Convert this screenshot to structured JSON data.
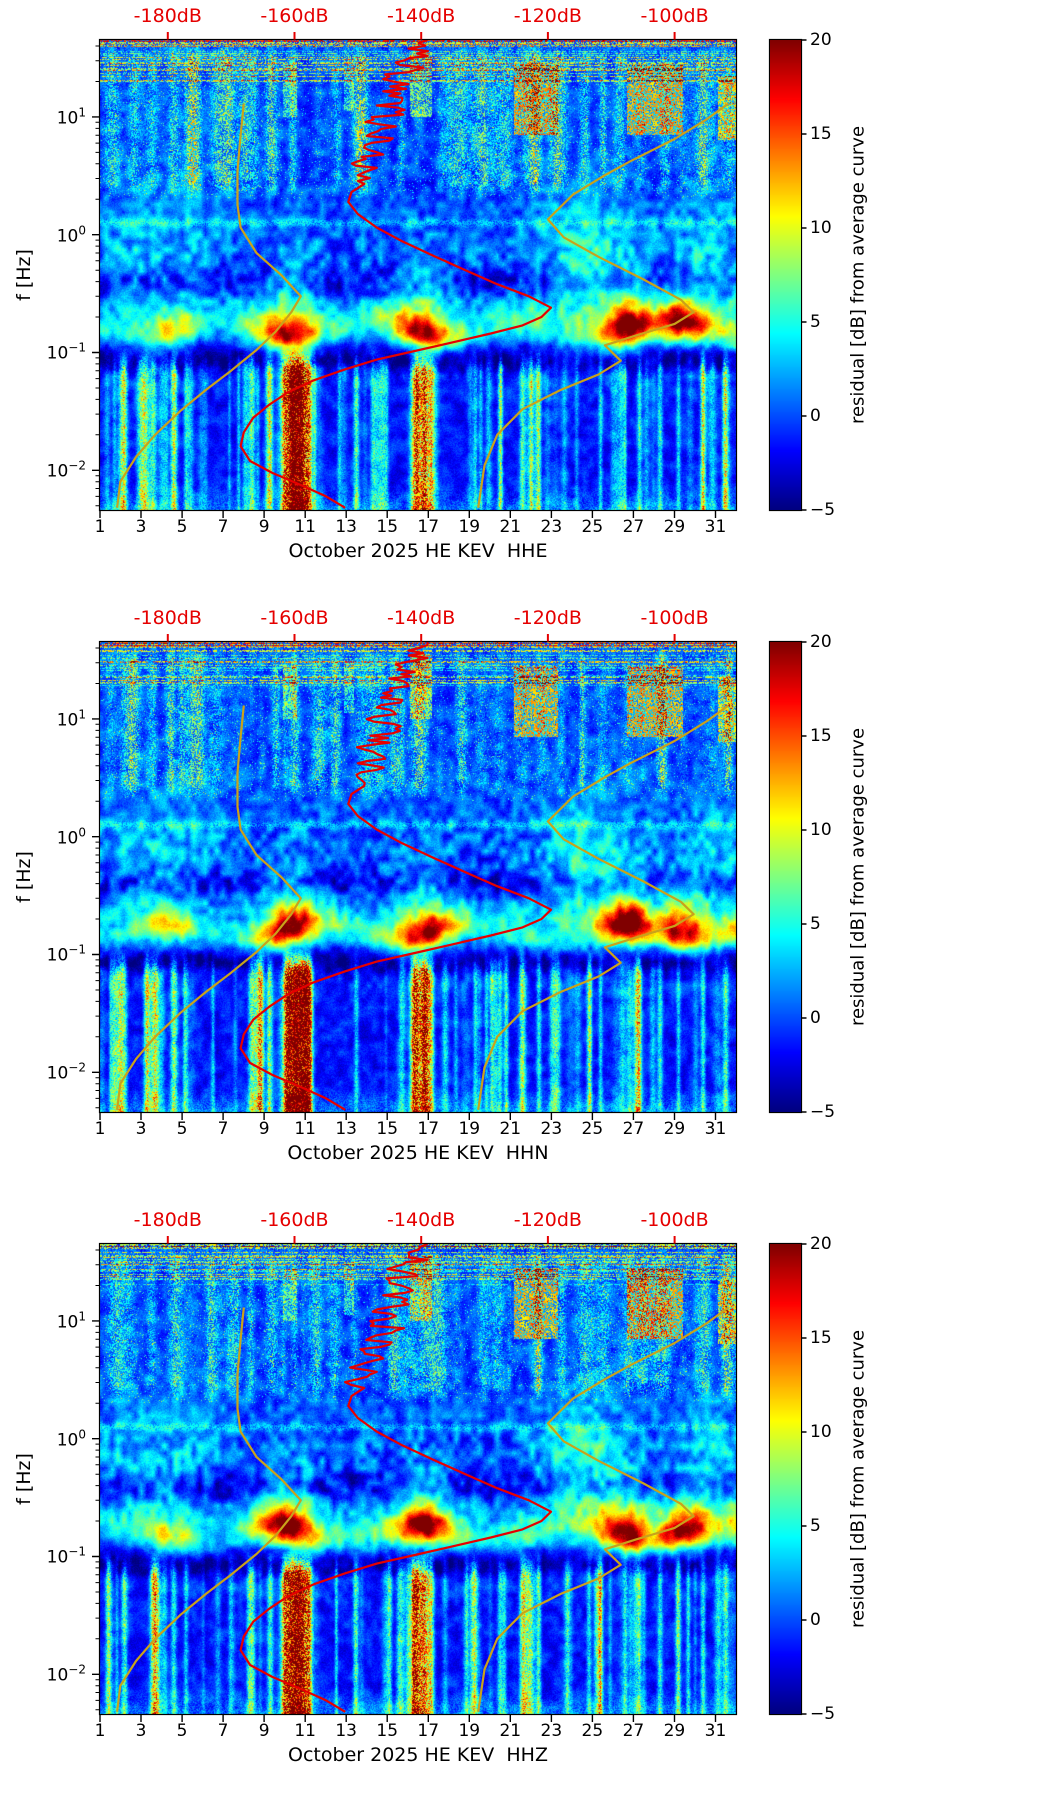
{
  "chart_data": {
    "type": "heatmap",
    "panels": [
      {
        "xlabel": "October 2025 HE KEV  HHE",
        "seed": 1
      },
      {
        "xlabel": "October 2025 HE KEV  HHN",
        "seed": 2
      },
      {
        "xlabel": "October 2025 HE KEV  HHZ",
        "seed": 3
      }
    ],
    "x_axis": {
      "range_days": [
        1,
        32
      ],
      "ticks": [
        1,
        3,
        5,
        7,
        9,
        11,
        13,
        15,
        17,
        19,
        21,
        23,
        25,
        27,
        29,
        31
      ]
    },
    "y_axis": {
      "label": "f [Hz]",
      "scale": "log",
      "range_hz": [
        0.0046,
        45
      ],
      "tick_base": "10",
      "ticks": [
        {
          "exp_value": 1,
          "exp_label": "1"
        },
        {
          "exp_value": 0,
          "exp_label": "0"
        },
        {
          "exp_value": -1,
          "exp_label": "−1"
        },
        {
          "exp_value": -2,
          "exp_label": "−2"
        }
      ]
    },
    "top_axis": {
      "color": "#e50000",
      "range_db": [
        -190.7,
        -90.3
      ],
      "ticks": [
        {
          "value": -180,
          "label": "-180dB"
        },
        {
          "value": -160,
          "label": "-160dB"
        },
        {
          "value": -140,
          "label": "-140dB"
        },
        {
          "value": -120,
          "label": "-120dB"
        },
        {
          "value": -100,
          "label": "-100dB"
        }
      ]
    },
    "colorbar": {
      "label": "residual [dB] from average curve",
      "min": -5,
      "max": 20,
      "colormap": "jet",
      "ticks": [
        {
          "value": 20,
          "label": "20"
        },
        {
          "value": 15,
          "label": "15"
        },
        {
          "value": 10,
          "label": "10"
        },
        {
          "value": 5,
          "label": "5"
        },
        {
          "value": 0,
          "label": "0"
        },
        {
          "value": -5,
          "label": "−5"
        }
      ]
    },
    "overlays": {
      "mean_psd_curve": {
        "color": "#e60000",
        "points_db_hz": [
          [
            -139,
            45
          ],
          [
            -142,
            38
          ],
          [
            -139,
            33
          ],
          [
            -144,
            29
          ],
          [
            -141,
            25
          ],
          [
            -145,
            22
          ],
          [
            -142,
            19
          ],
          [
            -146,
            16.5
          ],
          [
            -143,
            14.5
          ],
          [
            -147,
            12.5
          ],
          [
            -144,
            11
          ],
          [
            -147.5,
            9.5
          ],
          [
            -144,
            8.3
          ],
          [
            -148,
            7.2
          ],
          [
            -145,
            6.3
          ],
          [
            -149,
            5.5
          ],
          [
            -146,
            4.8
          ],
          [
            -150,
            4.2
          ],
          [
            -147,
            3.7
          ],
          [
            -150,
            3.2
          ],
          [
            -149,
            2.7
          ],
          [
            -151,
            2.3
          ],
          [
            -151.5,
            1.9
          ],
          [
            -150,
            1.5
          ],
          [
            -147,
            1.15
          ],
          [
            -143,
            0.88
          ],
          [
            -138,
            0.66
          ],
          [
            -133,
            0.5
          ],
          [
            -128,
            0.38
          ],
          [
            -123,
            0.3
          ],
          [
            -119.5,
            0.24
          ],
          [
            -121,
            0.2
          ],
          [
            -124,
            0.17
          ],
          [
            -129,
            0.145
          ],
          [
            -135,
            0.122
          ],
          [
            -141,
            0.103
          ],
          [
            -147,
            0.087
          ],
          [
            -152,
            0.072
          ],
          [
            -157,
            0.058
          ],
          [
            -161,
            0.046
          ],
          [
            -164,
            0.036
          ],
          [
            -166.5,
            0.028
          ],
          [
            -168,
            0.021
          ],
          [
            -168.5,
            0.016
          ],
          [
            -167,
            0.012
          ],
          [
            -163.5,
            0.0095
          ],
          [
            -159,
            0.0075
          ],
          [
            -155,
            0.006
          ],
          [
            -152,
            0.0048
          ]
        ]
      },
      "noise_model_low": {
        "color": "#c9a21b",
        "points_db_hz": [
          [
            -168,
            13
          ],
          [
            -168.5,
            7
          ],
          [
            -169,
            3.5
          ],
          [
            -169,
            1.8
          ],
          [
            -168.5,
            1.15
          ],
          [
            -166,
            0.7
          ],
          [
            -162,
            0.45
          ],
          [
            -159,
            0.3
          ],
          [
            -160.5,
            0.22
          ],
          [
            -163,
            0.15
          ],
          [
            -166,
            0.105
          ],
          [
            -170,
            0.07
          ],
          [
            -174,
            0.048
          ],
          [
            -178,
            0.032
          ],
          [
            -182,
            0.02
          ],
          [
            -185,
            0.013
          ],
          [
            -187.5,
            0.008
          ],
          [
            -188,
            0.0048
          ]
        ]
      },
      "noise_model_high": {
        "color": "#c9a21b",
        "points_db_hz": [
          [
            -91.5,
            13
          ],
          [
            -95,
            9.5
          ],
          [
            -100,
            6.5
          ],
          [
            -107,
            4.2
          ],
          [
            -111,
            3.2
          ],
          [
            -116,
            2.2
          ],
          [
            -120,
            1.35
          ],
          [
            -117.5,
            0.95
          ],
          [
            -112,
            0.65
          ],
          [
            -105,
            0.42
          ],
          [
            -99,
            0.28
          ],
          [
            -97,
            0.22
          ],
          [
            -100,
            0.175
          ],
          [
            -106,
            0.14
          ],
          [
            -111,
            0.115
          ],
          [
            -108.5,
            0.085
          ],
          [
            -112,
            0.065
          ],
          [
            -118,
            0.048
          ],
          [
            -124,
            0.033
          ],
          [
            -128,
            0.02
          ],
          [
            -130,
            0.011
          ],
          [
            -131,
            0.0048
          ]
        ]
      }
    },
    "texture": {
      "base_noise_db": 1.8,
      "microseism_band": {
        "center_log10f": -0.8,
        "sigma": 0.105,
        "halo_center": -0.52,
        "halo_sigma": 0.22,
        "day_amplitude_db": [
          3,
          3.5,
          5,
          9,
          8,
          4,
          3,
          5,
          11,
          19,
          15,
          6,
          5,
          4.5,
          7,
          14,
          19,
          10,
          5,
          4,
          5,
          5,
          3,
          3,
          5,
          9,
          14,
          9,
          12,
          10,
          6,
          9
        ]
      },
      "dark_band_above": {
        "center_log10f": -0.4,
        "sigma": 0.1,
        "depth_db": -4.2
      },
      "dark_band_below": {
        "center_log10f": -1.06,
        "sigma": 0.09,
        "depth_db": -5.2
      },
      "low_freq_transients": [
        [
          2.2,
          0.1,
          6
        ],
        [
          3.6,
          0.12,
          7
        ],
        [
          4.6,
          0.1,
          6
        ],
        [
          5.2,
          0.08,
          5
        ],
        [
          8.4,
          0.12,
          8
        ],
        [
          9.3,
          0.1,
          7
        ],
        [
          10.35,
          0.3,
          21
        ],
        [
          10.85,
          0.22,
          17
        ],
        [
          11.2,
          0.12,
          11
        ],
        [
          13.5,
          0.08,
          5
        ],
        [
          16.35,
          0.16,
          13
        ],
        [
          16.8,
          0.2,
          15
        ],
        [
          17.15,
          0.1,
          8
        ],
        [
          19.3,
          0.07,
          5
        ],
        [
          20.5,
          0.08,
          6
        ],
        [
          21.6,
          0.1,
          7
        ],
        [
          22.4,
          0.08,
          6
        ],
        [
          25.4,
          0.07,
          5
        ],
        [
          27.3,
          0.08,
          6
        ],
        [
          28.3,
          0.09,
          6
        ],
        [
          29.2,
          0.07,
          5
        ],
        [
          30.4,
          0.08,
          6
        ],
        [
          31.5,
          0.1,
          7
        ]
      ],
      "high_freq_hotspots": [
        [
          21.2,
          23.3,
          0.85,
          1.45,
          12
        ],
        [
          26.7,
          29.4,
          0.85,
          1.45,
          12
        ],
        [
          31.1,
          32,
          0.8,
          1.35,
          10
        ],
        [
          16.1,
          17.2,
          1.0,
          1.55,
          8
        ],
        [
          12.9,
          13.4,
          1.05,
          1.5,
          6
        ],
        [
          9.9,
          10.6,
          1.0,
          1.45,
          6
        ]
      ],
      "blobs": [
        [
          24.6,
          -0.3,
          1.5,
          0.45,
          5.5
        ],
        [
          26.6,
          -0.74,
          0.7,
          0.12,
          8
        ],
        [
          29.5,
          -0.74,
          0.8,
          0.12,
          7
        ],
        [
          2.5,
          -0.15,
          1.2,
          0.35,
          2.5
        ],
        [
          5.5,
          -0.05,
          1.2,
          0.35,
          2
        ],
        [
          30.8,
          -0.2,
          1.0,
          0.4,
          3
        ]
      ]
    }
  }
}
